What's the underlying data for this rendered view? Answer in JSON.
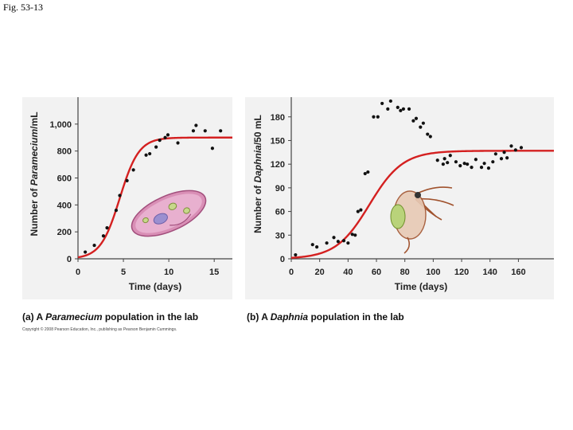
{
  "figure_label": "Fig. 53-13",
  "copyright": "Copyright © 2008 Pearson Education, Inc., publishing as Pearson Benjamin Cummings.",
  "colors": {
    "curve": "#d42020",
    "point": "#111111",
    "panel": "#f2f2f2"
  },
  "chart_data": [
    {
      "type": "scatter",
      "caption_prefix": "(a) A ",
      "caption_italic": "Paramecium",
      "caption_suffix": " population in the lab",
      "xlabel": "Time (days)",
      "ylabel_prefix": "Number of ",
      "ylabel_italic": "Paramecium",
      "ylabel_suffix": "/mL",
      "xlim": [
        0,
        17
      ],
      "ylim": [
        0,
        1200
      ],
      "xticks": [
        0,
        5,
        10,
        15
      ],
      "xtick_labels": [
        "0",
        "5",
        "10",
        "15"
      ],
      "yticks": [
        0,
        200,
        400,
        600,
        800,
        1000
      ],
      "ytick_labels": [
        "0",
        "200",
        "400",
        "600",
        "800",
        "1,000"
      ],
      "illustration": "paramecium",
      "logistic": {
        "K": 900,
        "r": 0.95,
        "t0": 4.6
      },
      "points": [
        [
          0.8,
          50
        ],
        [
          1.8,
          100
        ],
        [
          2.8,
          170
        ],
        [
          3.2,
          230
        ],
        [
          4.2,
          360
        ],
        [
          4.6,
          470
        ],
        [
          5.4,
          580
        ],
        [
          6.1,
          660
        ],
        [
          7.5,
          770
        ],
        [
          7.9,
          780
        ],
        [
          8.6,
          830
        ],
        [
          9.0,
          880
        ],
        [
          9.6,
          900
        ],
        [
          9.9,
          920
        ],
        [
          11.0,
          860
        ],
        [
          12.7,
          950
        ],
        [
          13.0,
          990
        ],
        [
          14.0,
          950
        ],
        [
          14.8,
          820
        ],
        [
          15.7,
          950
        ]
      ]
    },
    {
      "type": "scatter",
      "caption_prefix": "(b) A ",
      "caption_italic": "Daphnia",
      "caption_suffix": " population in the lab",
      "xlabel": "Time (days)",
      "ylabel_prefix": "Number of ",
      "ylabel_italic": "Daphnia",
      "ylabel_suffix": "/50 mL",
      "xlim": [
        0,
        185
      ],
      "ylim": [
        0,
        205
      ],
      "xticks": [
        0,
        20,
        40,
        60,
        80,
        100,
        120,
        140,
        160
      ],
      "xtick_labels": [
        "0",
        "20",
        "40",
        "60",
        "80",
        "100",
        "120",
        "140",
        "160"
      ],
      "yticks": [
        0,
        30,
        60,
        90,
        120,
        150,
        180
      ],
      "ytick_labels": [
        "0",
        "30",
        "60",
        "90",
        "120",
        "150",
        "180"
      ],
      "illustration": "daphnia",
      "logistic": {
        "K": 137,
        "r": 0.085,
        "t0": 55
      },
      "points": [
        [
          3,
          5
        ],
        [
          15,
          18
        ],
        [
          18,
          15
        ],
        [
          25,
          20
        ],
        [
          30,
          27
        ],
        [
          33,
          22
        ],
        [
          37,
          23
        ],
        [
          40,
          20
        ],
        [
          43,
          31
        ],
        [
          45,
          30
        ],
        [
          47,
          60
        ],
        [
          49,
          62
        ],
        [
          52,
          108
        ],
        [
          54,
          110
        ],
        [
          58,
          180
        ],
        [
          61,
          180
        ],
        [
          64,
          197
        ],
        [
          68,
          190
        ],
        [
          70,
          200
        ],
        [
          75,
          192
        ],
        [
          77,
          188
        ],
        [
          79,
          190
        ],
        [
          83,
          190
        ],
        [
          86,
          175
        ],
        [
          88,
          178
        ],
        [
          91,
          167
        ],
        [
          93,
          172
        ],
        [
          96,
          158
        ],
        [
          98,
          155
        ],
        [
          103,
          125
        ],
        [
          107,
          120
        ],
        [
          108,
          127
        ],
        [
          110,
          122
        ],
        [
          112,
          131
        ],
        [
          116,
          123
        ],
        [
          119,
          118
        ],
        [
          122,
          121
        ],
        [
          124,
          120
        ],
        [
          127,
          116
        ],
        [
          130,
          126
        ],
        [
          134,
          116
        ],
        [
          136,
          121
        ],
        [
          139,
          115
        ],
        [
          142,
          123
        ],
        [
          144,
          133
        ],
        [
          148,
          127
        ],
        [
          150,
          135
        ],
        [
          152,
          128
        ],
        [
          155,
          143
        ],
        [
          158,
          138
        ],
        [
          162,
          141
        ]
      ]
    }
  ]
}
